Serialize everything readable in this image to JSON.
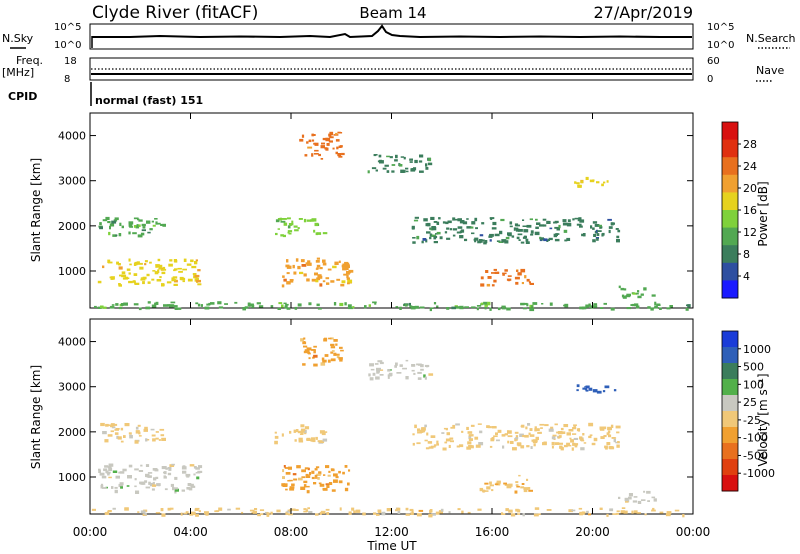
{
  "header": {
    "station": "Clyde River (fitACF)",
    "beam": "Beam 14",
    "date": "27/Apr/2019"
  },
  "status": {
    "nsky_label": "N.Sky",
    "nsearch_label": "N.Search",
    "nsky_ticks": [
      "10^5",
      "10^0"
    ],
    "nsearch_ticks": [
      "10^5",
      "10^0"
    ],
    "freq_label": "Freq.",
    "freq_unit": "[MHz]",
    "freq_ticks": [
      "18",
      "8"
    ],
    "nave_label": "Nave",
    "nave_ticks": [
      "60",
      "0"
    ],
    "cpid_label": "CPID",
    "cpid_value": "normal (fast) 151"
  },
  "xaxis": {
    "label": "Time UT",
    "ticks": [
      "00:00",
      "04:00",
      "08:00",
      "12:00",
      "16:00",
      "20:00",
      "00:00"
    ]
  },
  "colors": {
    "power_scale": [
      "#1a1aff",
      "#2e4fa0",
      "#3b7d5c",
      "#52a852",
      "#7fd13b",
      "#e6d21e",
      "#f0a030",
      "#e8701e",
      "#e03010",
      "#d81010"
    ],
    "velocity_scale": [
      "#1a3cd8",
      "#2e5fb8",
      "#3b7d5c",
      "#52b04a",
      "#c8c8c0",
      "#f0c878",
      "#f0a030",
      "#e8701e",
      "#e04010",
      "#d81010"
    ]
  },
  "chart_data": [
    {
      "type": "heatmap",
      "title": "Power",
      "xlabel": "Time UT",
      "ylabel": "Slant Range [km]",
      "colorbar_label": "Power [dB]",
      "colorbar_ticks": [
        "28",
        "24",
        "20",
        "16",
        "12",
        "8",
        "4"
      ],
      "xlim": [
        0,
        24
      ],
      "ylim": [
        180,
        4500
      ],
      "yticks": [
        1000,
        2000,
        3000,
        4000
      ],
      "clim": [
        0,
        30
      ],
      "patches": [
        {
          "t0": 0.3,
          "t1": 3.0,
          "r0": 1800,
          "r1": 2200,
          "level": 10
        },
        {
          "t0": 0.3,
          "t1": 4.3,
          "r0": 700,
          "r1": 1300,
          "level": 18
        },
        {
          "t0": 7.3,
          "t1": 9.3,
          "r0": 1800,
          "r1": 2200,
          "level": 12
        },
        {
          "t0": 7.6,
          "t1": 10.3,
          "r0": 700,
          "r1": 1300,
          "level": 20
        },
        {
          "t0": 8.3,
          "t1": 10.0,
          "r0": 3500,
          "r1": 4100,
          "level": 22
        },
        {
          "t0": 11.0,
          "t1": 13.5,
          "r0": 3200,
          "r1": 3600,
          "level": 8
        },
        {
          "t0": 12.8,
          "t1": 21.0,
          "r0": 1650,
          "r1": 2200,
          "level": 7
        },
        {
          "t0": 15.5,
          "t1": 17.5,
          "r0": 700,
          "r1": 1050,
          "level": 22
        },
        {
          "t0": 19.2,
          "t1": 20.9,
          "r0": 2900,
          "r1": 3100,
          "level": 17
        },
        {
          "t0": 21.0,
          "t1": 22.5,
          "r0": 450,
          "r1": 700,
          "level": 10
        },
        {
          "t0": 0.0,
          "t1": 24.0,
          "r0": 180,
          "r1": 330,
          "level": 11
        }
      ]
    },
    {
      "type": "heatmap",
      "title": "Velocity",
      "xlabel": "Time UT",
      "ylabel": "Slant Range [km]",
      "colorbar_label": "Velocity [m s⁻¹]",
      "colorbar_ticks": [
        "1000",
        "500",
        "100",
        "25",
        "-25",
        "-100",
        "-500",
        "-1000"
      ],
      "xlim": [
        0,
        24
      ],
      "ylim": [
        180,
        4500
      ],
      "yticks": [
        1000,
        2000,
        3000,
        4000
      ],
      "clim": [
        -1000,
        1000
      ],
      "patches": [
        {
          "t0": 0.3,
          "t1": 3.0,
          "r0": 1800,
          "r1": 2200,
          "level": 0
        },
        {
          "t0": 0.3,
          "t1": 4.3,
          "r0": 700,
          "r1": 1300,
          "level": 150
        },
        {
          "t0": 7.3,
          "t1": 9.3,
          "r0": 1800,
          "r1": 2200,
          "level": 0
        },
        {
          "t0": 7.6,
          "t1": 10.3,
          "r0": 700,
          "r1": 1300,
          "level": -300
        },
        {
          "t0": 8.3,
          "t1": 10.0,
          "r0": 3500,
          "r1": 4100,
          "level": -300
        },
        {
          "t0": 11.0,
          "t1": 13.5,
          "r0": 3200,
          "r1": 3600,
          "level": 150
        },
        {
          "t0": 12.8,
          "t1": 21.0,
          "r0": 1650,
          "r1": 2200,
          "level": 0
        },
        {
          "t0": 15.5,
          "t1": 17.5,
          "r0": 700,
          "r1": 1050,
          "level": -200
        },
        {
          "t0": 19.2,
          "t1": 20.9,
          "r0": 2900,
          "r1": 3100,
          "level": 800
        },
        {
          "t0": 21.0,
          "t1": 22.5,
          "r0": 450,
          "r1": 700,
          "level": 150
        },
        {
          "t0": 0.0,
          "t1": 24.0,
          "r0": 180,
          "r1": 330,
          "level": -50
        }
      ]
    }
  ]
}
